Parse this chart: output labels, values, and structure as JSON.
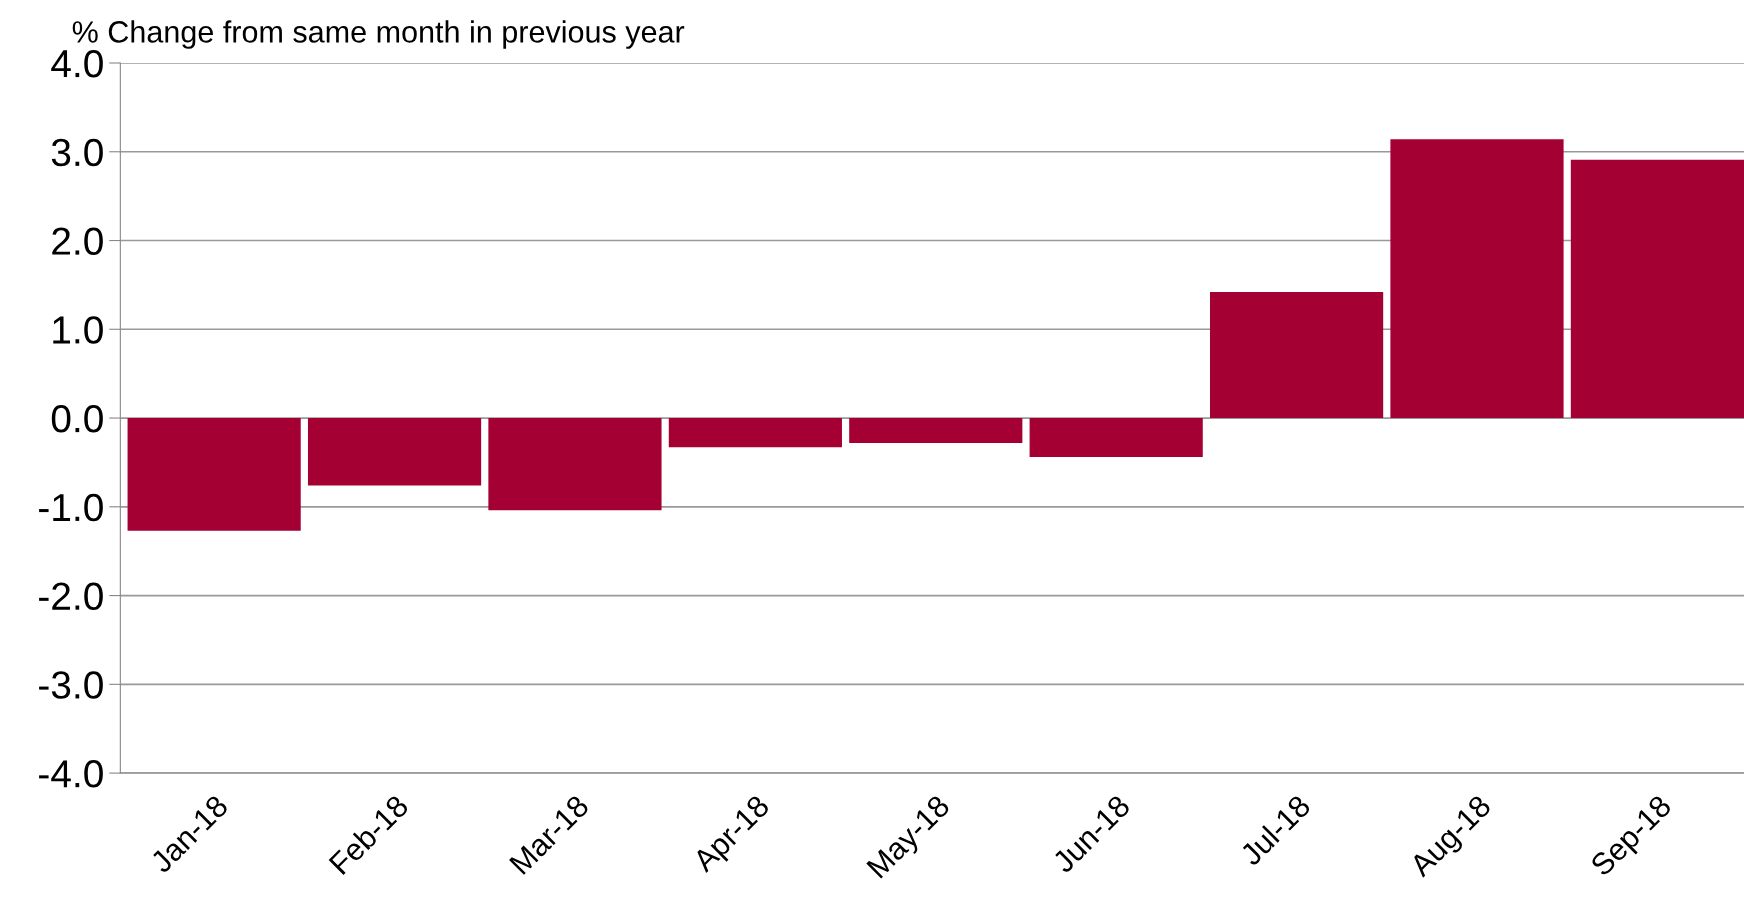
{
  "chart_data": {
    "type": "bar",
    "ylabel": "% Change from same month in previous year",
    "categories": [
      "Jan-18",
      "Feb-18",
      "Mar-18",
      "Apr-18",
      "May-18",
      "Jun-18",
      "Jul-18",
      "Aug-18",
      "Sep-18"
    ],
    "values": [
      -1.27,
      -0.76,
      -1.04,
      -0.33,
      -0.28,
      -0.44,
      1.42,
      3.14,
      2.91
    ],
    "color": "#a50034",
    "ylim": [
      -4.0,
      4.0
    ],
    "yticks": [
      {
        "value": -4,
        "label": "-4.0"
      },
      {
        "value": -3,
        "label": "-3.0"
      },
      {
        "value": -2,
        "label": "-2.0"
      },
      {
        "value": -1,
        "label": "-1.0"
      },
      {
        "value": 0,
        "label": "0.0"
      },
      {
        "value": 1,
        "label": "1.0"
      },
      {
        "value": 2,
        "label": "2.0"
      },
      {
        "value": 3,
        "label": "3.0"
      },
      {
        "value": 4,
        "label": "4.0"
      }
    ],
    "grid": "y"
  }
}
